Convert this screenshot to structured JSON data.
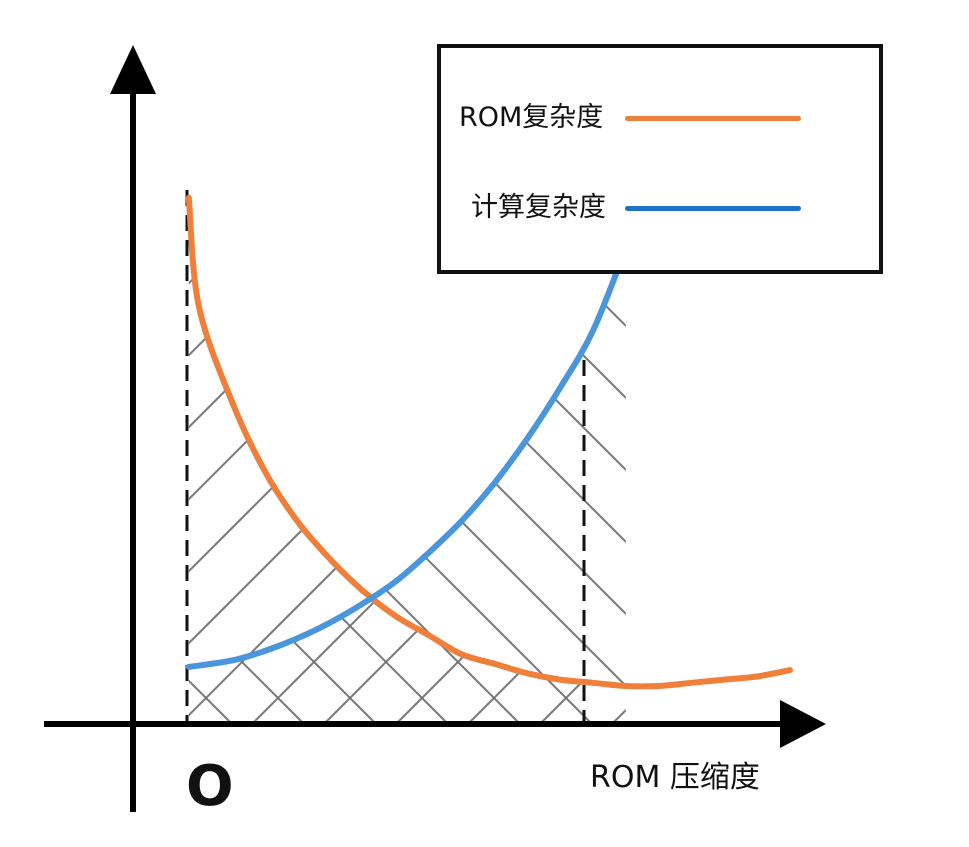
{
  "chart_data": {
    "type": "line",
    "title": "",
    "xlabel": "ROM 压缩度",
    "ylabel": "",
    "origin_label": "O",
    "legend_position": "top-right",
    "grid": false,
    "xlim": [
      0,
      10
    ],
    "ylim": [
      0,
      10
    ],
    "series": [
      {
        "name": "ROM复杂度",
        "color": "#F07F3A",
        "x": [
          0.85,
          1.0,
          1.5,
          2.0,
          2.5,
          3.0,
          3.5,
          4.0,
          4.5,
          5.0,
          5.5,
          6.0,
          6.5,
          7.0,
          7.5,
          8.0,
          8.5,
          9.0,
          9.5,
          10.0
        ],
        "y": [
          8.3,
          6.6,
          5.1,
          4.0,
          3.2,
          2.6,
          2.1,
          1.7,
          1.4,
          1.1,
          0.95,
          0.8,
          0.7,
          0.65,
          0.6,
          0.6,
          0.65,
          0.7,
          0.75,
          0.85
        ]
      },
      {
        "name": "计算复杂度",
        "color": "#4A96DD",
        "x": [
          0.85,
          1.5,
          2.0,
          2.5,
          3.0,
          3.5,
          4.0,
          4.5,
          5.0,
          5.5,
          6.0,
          6.5,
          7.0,
          7.5
        ],
        "y": [
          0.9,
          1.0,
          1.15,
          1.35,
          1.6,
          1.9,
          2.25,
          2.7,
          3.2,
          3.8,
          4.5,
          5.3,
          6.2,
          7.5
        ]
      }
    ],
    "bounds": [
      0.85,
      7.5
    ]
  },
  "legend": {
    "items": [
      {
        "label": "ROM复杂度",
        "color": "#F07F3A"
      },
      {
        "label": "计算复杂度",
        "color": "#1E73C8"
      }
    ]
  }
}
